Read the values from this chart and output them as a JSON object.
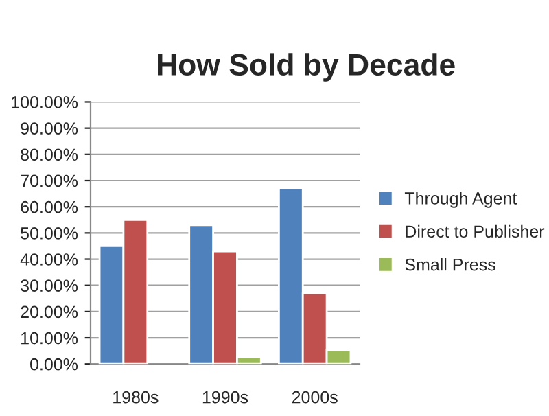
{
  "chart_data": {
    "type": "bar",
    "title": "How Sold by Decade",
    "categories": [
      "1980s",
      "1990s",
      "2000s"
    ],
    "series": [
      {
        "name": "Through Agent",
        "color": "#4f81bd",
        "values": [
          45,
          53,
          67
        ]
      },
      {
        "name": "Direct to Publisher",
        "color": "#c0504d",
        "values": [
          55,
          43,
          27
        ]
      },
      {
        "name": "Small Press",
        "color": "#9bbb59",
        "values": [
          null,
          2.7,
          5.4
        ]
      }
    ],
    "ylim": [
      0,
      100
    ],
    "yticks": [
      {
        "value": 0,
        "label": "0.00%"
      },
      {
        "value": 10,
        "label": "10.00%"
      },
      {
        "value": 20,
        "label": "20.00%"
      },
      {
        "value": 30,
        "label": "30.00%"
      },
      {
        "value": 40,
        "label": "40.00%"
      },
      {
        "value": 50,
        "label": "50.00%"
      },
      {
        "value": 60,
        "label": "60.00%"
      },
      {
        "value": 70,
        "label": "70.00%"
      },
      {
        "value": 80,
        "label": "80.00%"
      },
      {
        "value": 90,
        "label": "90.00%"
      },
      {
        "value": 100,
        "label": "100.00%"
      }
    ],
    "grid": "y",
    "legend": "right"
  }
}
